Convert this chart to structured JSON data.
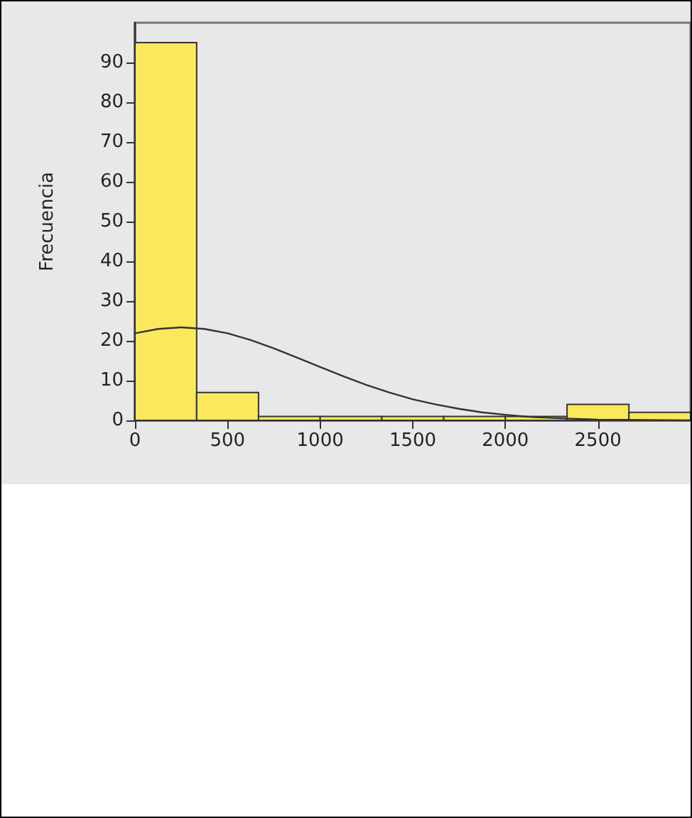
{
  "chart_data": {
    "type": "histogram",
    "ylabel": "Frecuencia",
    "color": "#fce85c",
    "bins": [
      0,
      333,
      667,
      1000,
      1333,
      1667,
      2000,
      2333,
      2667,
      3000
    ],
    "values": [
      95,
      7,
      1,
      1,
      1,
      1,
      1,
      4,
      2
    ],
    "xlim": [
      0,
      3000
    ],
    "xticks": [
      0,
      500,
      1000,
      1500,
      2000,
      2500
    ],
    "ylim": [
      0,
      100
    ],
    "yticks": [
      0,
      10,
      20,
      30,
      40,
      50,
      60,
      70,
      80,
      90
    ],
    "grid": false,
    "series": [
      {
        "type": "line",
        "color": "#333333",
        "marker": "none",
        "x": [
          0,
          125,
          250,
          375,
          500,
          625,
          750,
          875,
          1000,
          1125,
          1250,
          1375,
          1500,
          1625,
          1750,
          1875,
          2000,
          2125,
          2250,
          2500,
          2750,
          3000
        ],
        "values": [
          21.9,
          23.0,
          23.4,
          23.0,
          21.9,
          20.2,
          18.1,
          15.8,
          13.4,
          11.1,
          8.9,
          7.0,
          5.3,
          4.0,
          2.9,
          2.0,
          1.4,
          0.9,
          0.6,
          0.2,
          0.1,
          0.0
        ]
      }
    ]
  }
}
